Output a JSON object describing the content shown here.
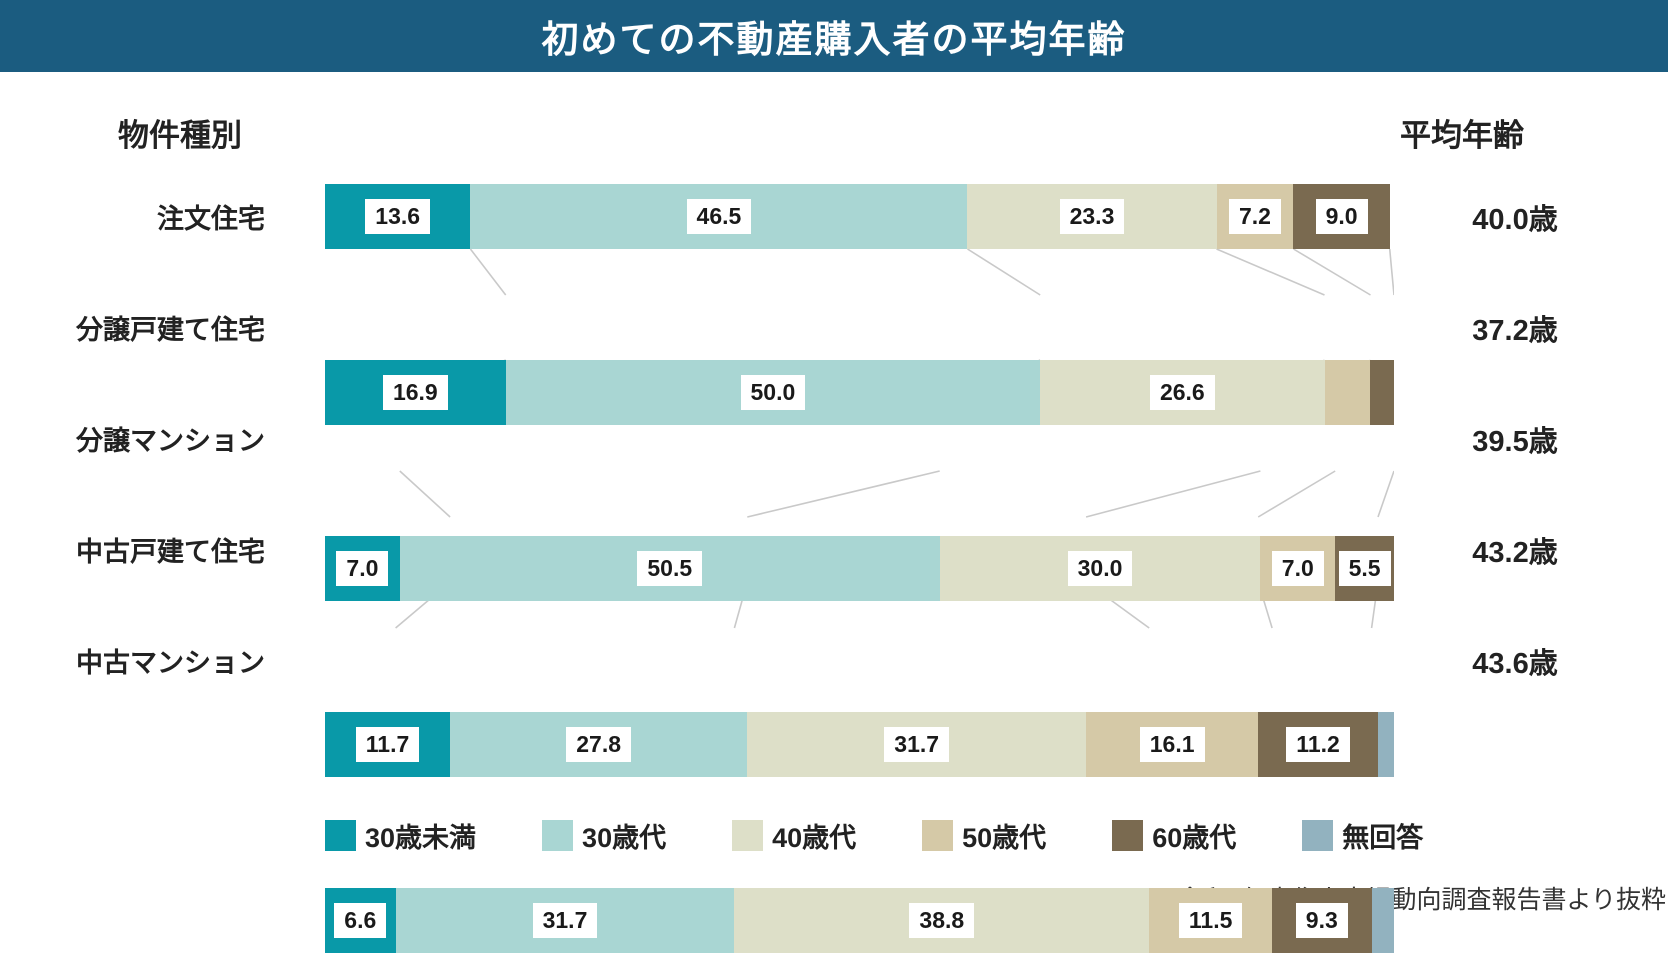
{
  "title": "初めての不動産購入者の平均年齢",
  "left_header": "物件種別",
  "right_header": "平均年齢",
  "source_note": "※令和3年度住宅市場動向調査報告書より抜粋",
  "colors": {
    "header_bg": "#1b5c80",
    "connector_line": "#c9c9c9",
    "value_label_bg": "#ffffff",
    "text": "#222222"
  },
  "chart_data": {
    "type": "bar",
    "orientation": "horizontal",
    "stacked": true,
    "unit": "%",
    "x_range": [
      0,
      100
    ],
    "grid": false,
    "legend_position": "bottom",
    "categories": [
      "注文住宅",
      "分譲戸建て住宅",
      "分譲マンション",
      "中古戸建て住宅",
      "中古マンション"
    ],
    "series": [
      {
        "name": "30歳未満",
        "color": "#0999a8",
        "values": [
          13.6,
          16.9,
          7.0,
          11.7,
          6.6
        ]
      },
      {
        "name": "30歳代",
        "color": "#a9d6d3",
        "values": [
          46.5,
          50.0,
          50.5,
          27.8,
          31.7
        ]
      },
      {
        "name": "40歳代",
        "color": "#dddfc8",
        "values": [
          23.3,
          26.6,
          30.0,
          31.7,
          38.8
        ]
      },
      {
        "name": "50歳代",
        "color": "#d5c9a7",
        "values": [
          7.2,
          4.3,
          7.0,
          16.1,
          11.5
        ]
      },
      {
        "name": "60歳代",
        "color": "#7a6a50",
        "values": [
          9.0,
          2.2,
          5.5,
          11.2,
          9.3
        ]
      },
      {
        "name": "無回答",
        "color": "#92b2bf",
        "values": [
          0,
          0,
          0,
          1.5,
          2.1
        ]
      }
    ],
    "value_labels": [
      [
        "13.6",
        "46.5",
        "23.3",
        "7.2",
        "9.0",
        null
      ],
      [
        "16.9",
        "50.0",
        "26.6",
        null,
        null,
        null
      ],
      [
        "7.0",
        "50.5",
        "30.0",
        "7.0",
        "5.5",
        null
      ],
      [
        "11.7",
        "27.8",
        "31.7",
        "16.1",
        "11.2",
        null
      ],
      [
        "6.6",
        "31.7",
        "38.8",
        "11.5",
        "9.3",
        null
      ]
    ],
    "averages": [
      "40.0歳",
      "37.2歳",
      "39.5歳",
      "43.2歳",
      "43.6歳"
    ]
  },
  "legend": {
    "items": [
      {
        "label": "30歳未満",
        "color": "#0999a8"
      },
      {
        "label": "30歳代",
        "color": "#a9d6d3"
      },
      {
        "label": "40歳代",
        "color": "#dddfc8"
      },
      {
        "label": "50歳代",
        "color": "#d5c9a7"
      },
      {
        "label": "60歳代",
        "color": "#7a6a50"
      },
      {
        "label": "無回答",
        "color": "#92b2bf"
      }
    ]
  }
}
